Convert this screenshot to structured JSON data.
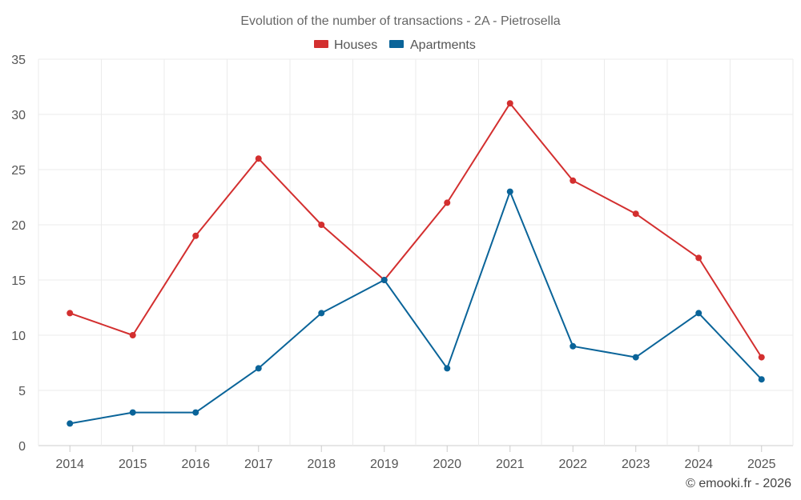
{
  "chart_data": {
    "type": "line",
    "title": "Evolution of the number of transactions - 2A - Pietrosella",
    "categories": [
      "2014",
      "2015",
      "2016",
      "2017",
      "2018",
      "2019",
      "2020",
      "2021",
      "2022",
      "2023",
      "2024",
      "2025"
    ],
    "series": [
      {
        "name": "Houses",
        "color": "#d32f2f",
        "values": [
          12,
          10,
          19,
          26,
          20,
          15,
          22,
          31,
          24,
          21,
          17,
          8
        ]
      },
      {
        "name": "Apartments",
        "color": "#0a6499",
        "values": [
          2,
          3,
          3,
          7,
          12,
          15,
          7,
          23,
          9,
          8,
          12,
          6
        ]
      }
    ],
    "ylim": [
      0,
      35
    ],
    "yticks": [
      0,
      5,
      10,
      15,
      20,
      25,
      30,
      35
    ],
    "xlabel": "",
    "ylabel": "",
    "grid": true,
    "legend": "top-center"
  },
  "credit": "© emooki.fr - 2026"
}
